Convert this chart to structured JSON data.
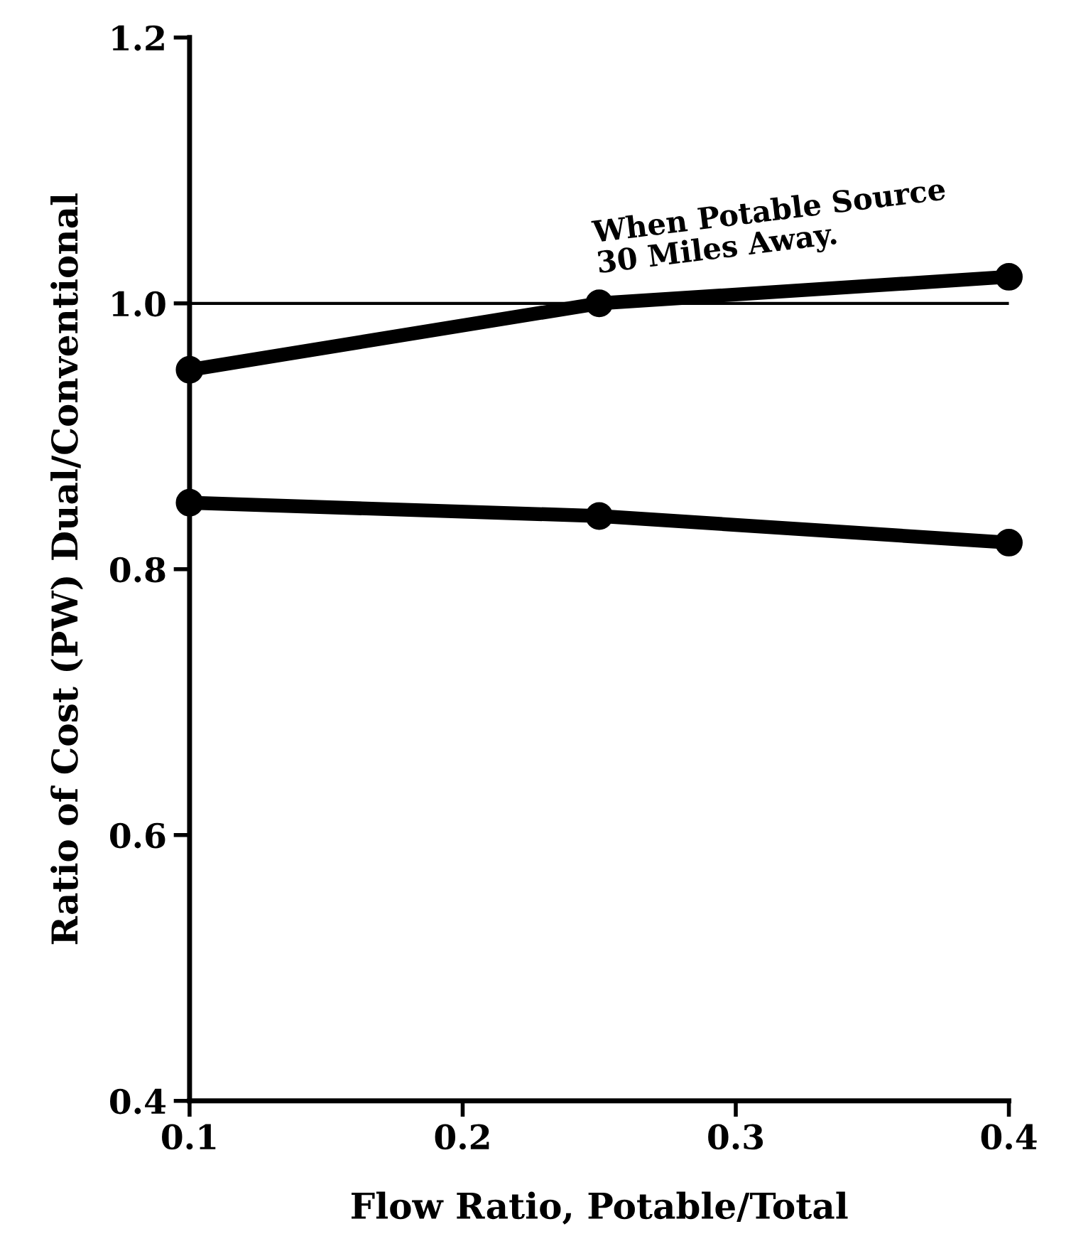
{
  "chart_data": {
    "type": "line",
    "xlabel": "Flow Ratio, Potable/Total",
    "ylabel": "Ratio of Cost (PW) Dual/Conventional",
    "x": [
      0.1,
      0.25,
      0.4
    ],
    "series": [
      {
        "color": "#000000",
        "values": [
          0.95,
          1.0,
          1.02
        ]
      },
      {
        "color": "#000000",
        "values": [
          0.85,
          0.84,
          0.82
        ]
      }
    ],
    "xlim": [
      0.1,
      0.4
    ],
    "ylim": [
      0.4,
      1.2
    ],
    "xticks": [
      0.1,
      0.2,
      0.3,
      0.4
    ],
    "yticks": [
      0.4,
      0.6,
      0.8,
      {
        "value": 1.0,
        "label": "1.0"
      },
      1.2
    ],
    "ref_lines": [
      {
        "axis": "y",
        "value": 1.0,
        "color": "#000000",
        "line_style": "solid"
      }
    ],
    "annotations": [
      {
        "text": "When Potable Source\n30 Miles Away.",
        "x": 0.25,
        "y": 1.0
      }
    ],
    "marker": "circle",
    "line_style": "solid",
    "grid": false,
    "legend": false
  }
}
